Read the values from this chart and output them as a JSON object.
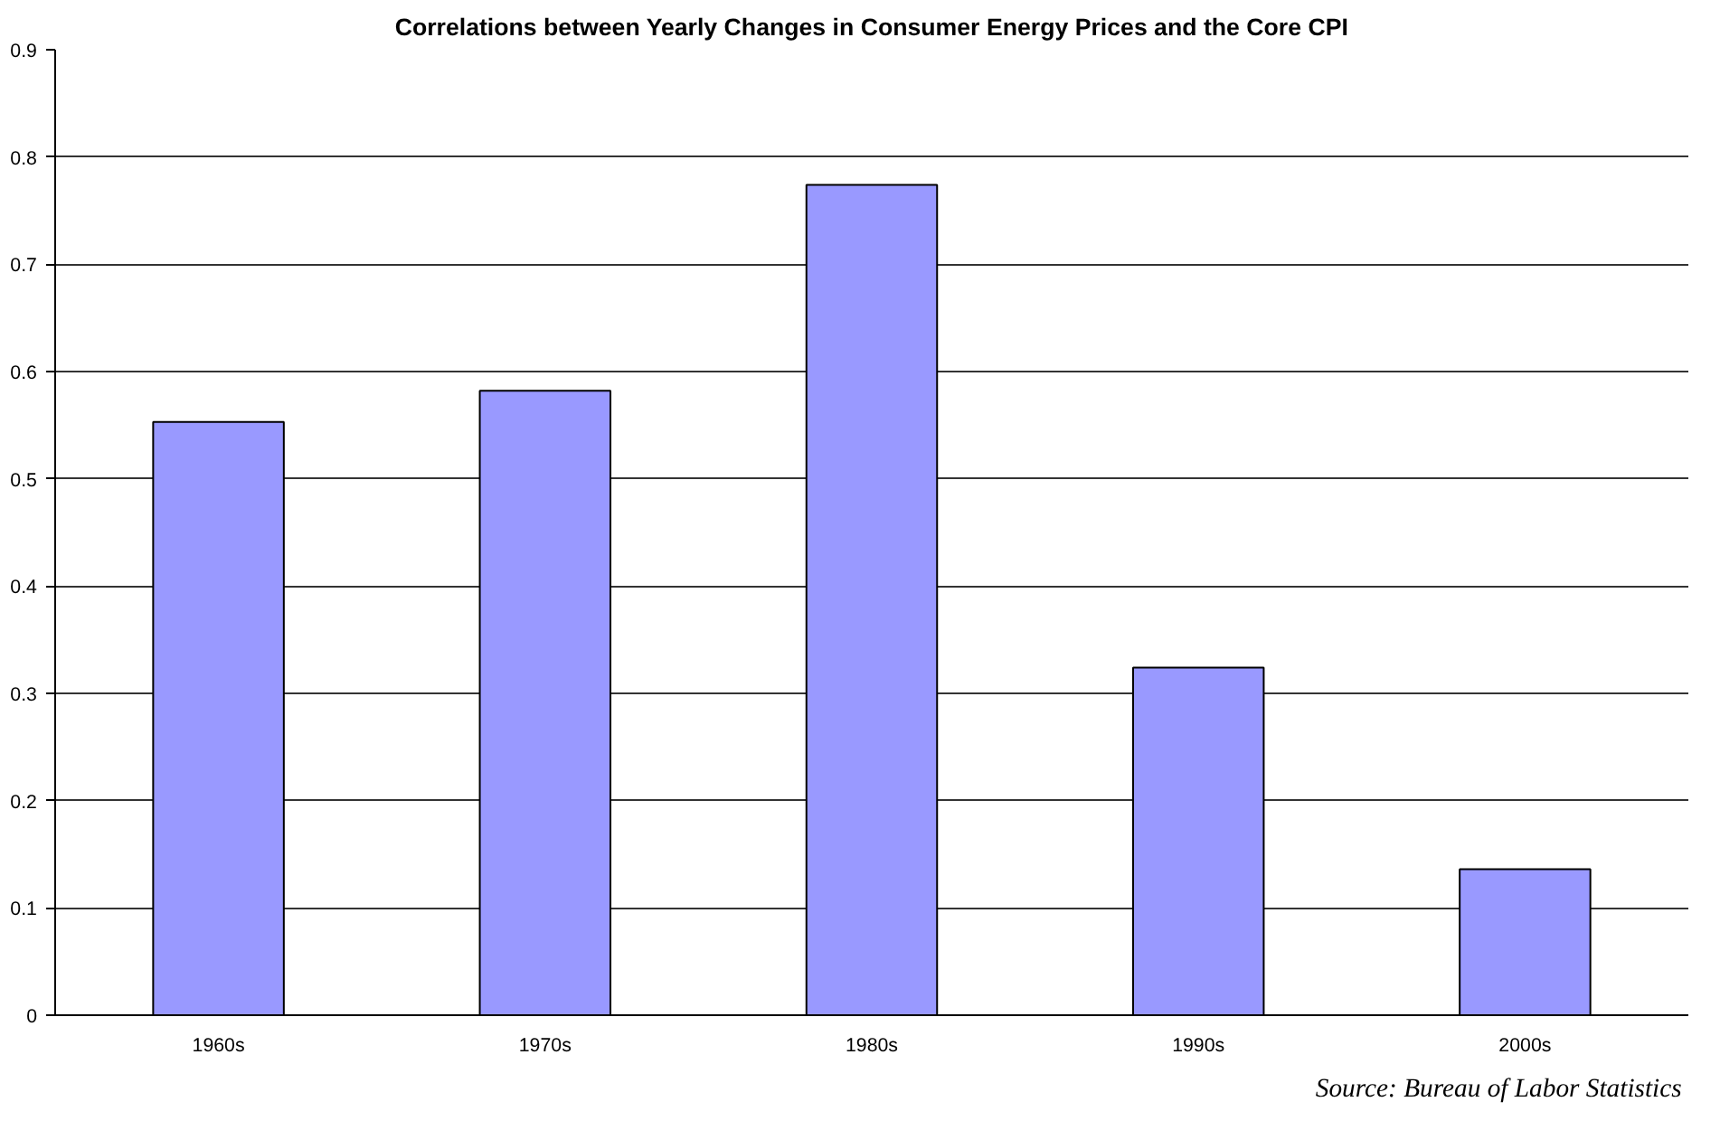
{
  "chart_data": {
    "type": "bar",
    "title": "Correlations between Yearly Changes in Consumer Energy Prices and the Core CPI",
    "categories": [
      "1960s",
      "1970s",
      "1980s",
      "1990s",
      "2000s"
    ],
    "values": [
      0.553,
      0.582,
      0.774,
      0.324,
      0.136
    ],
    "color": "#9999ff",
    "ylim": [
      0,
      0.9
    ],
    "yticks": [
      0,
      0.1,
      0.2,
      0.3,
      0.4,
      0.5,
      0.6,
      0.7,
      0.8,
      0.9
    ],
    "grid": "y",
    "annotations": [
      "Source:  Bureau of Labor Statistics"
    ]
  }
}
